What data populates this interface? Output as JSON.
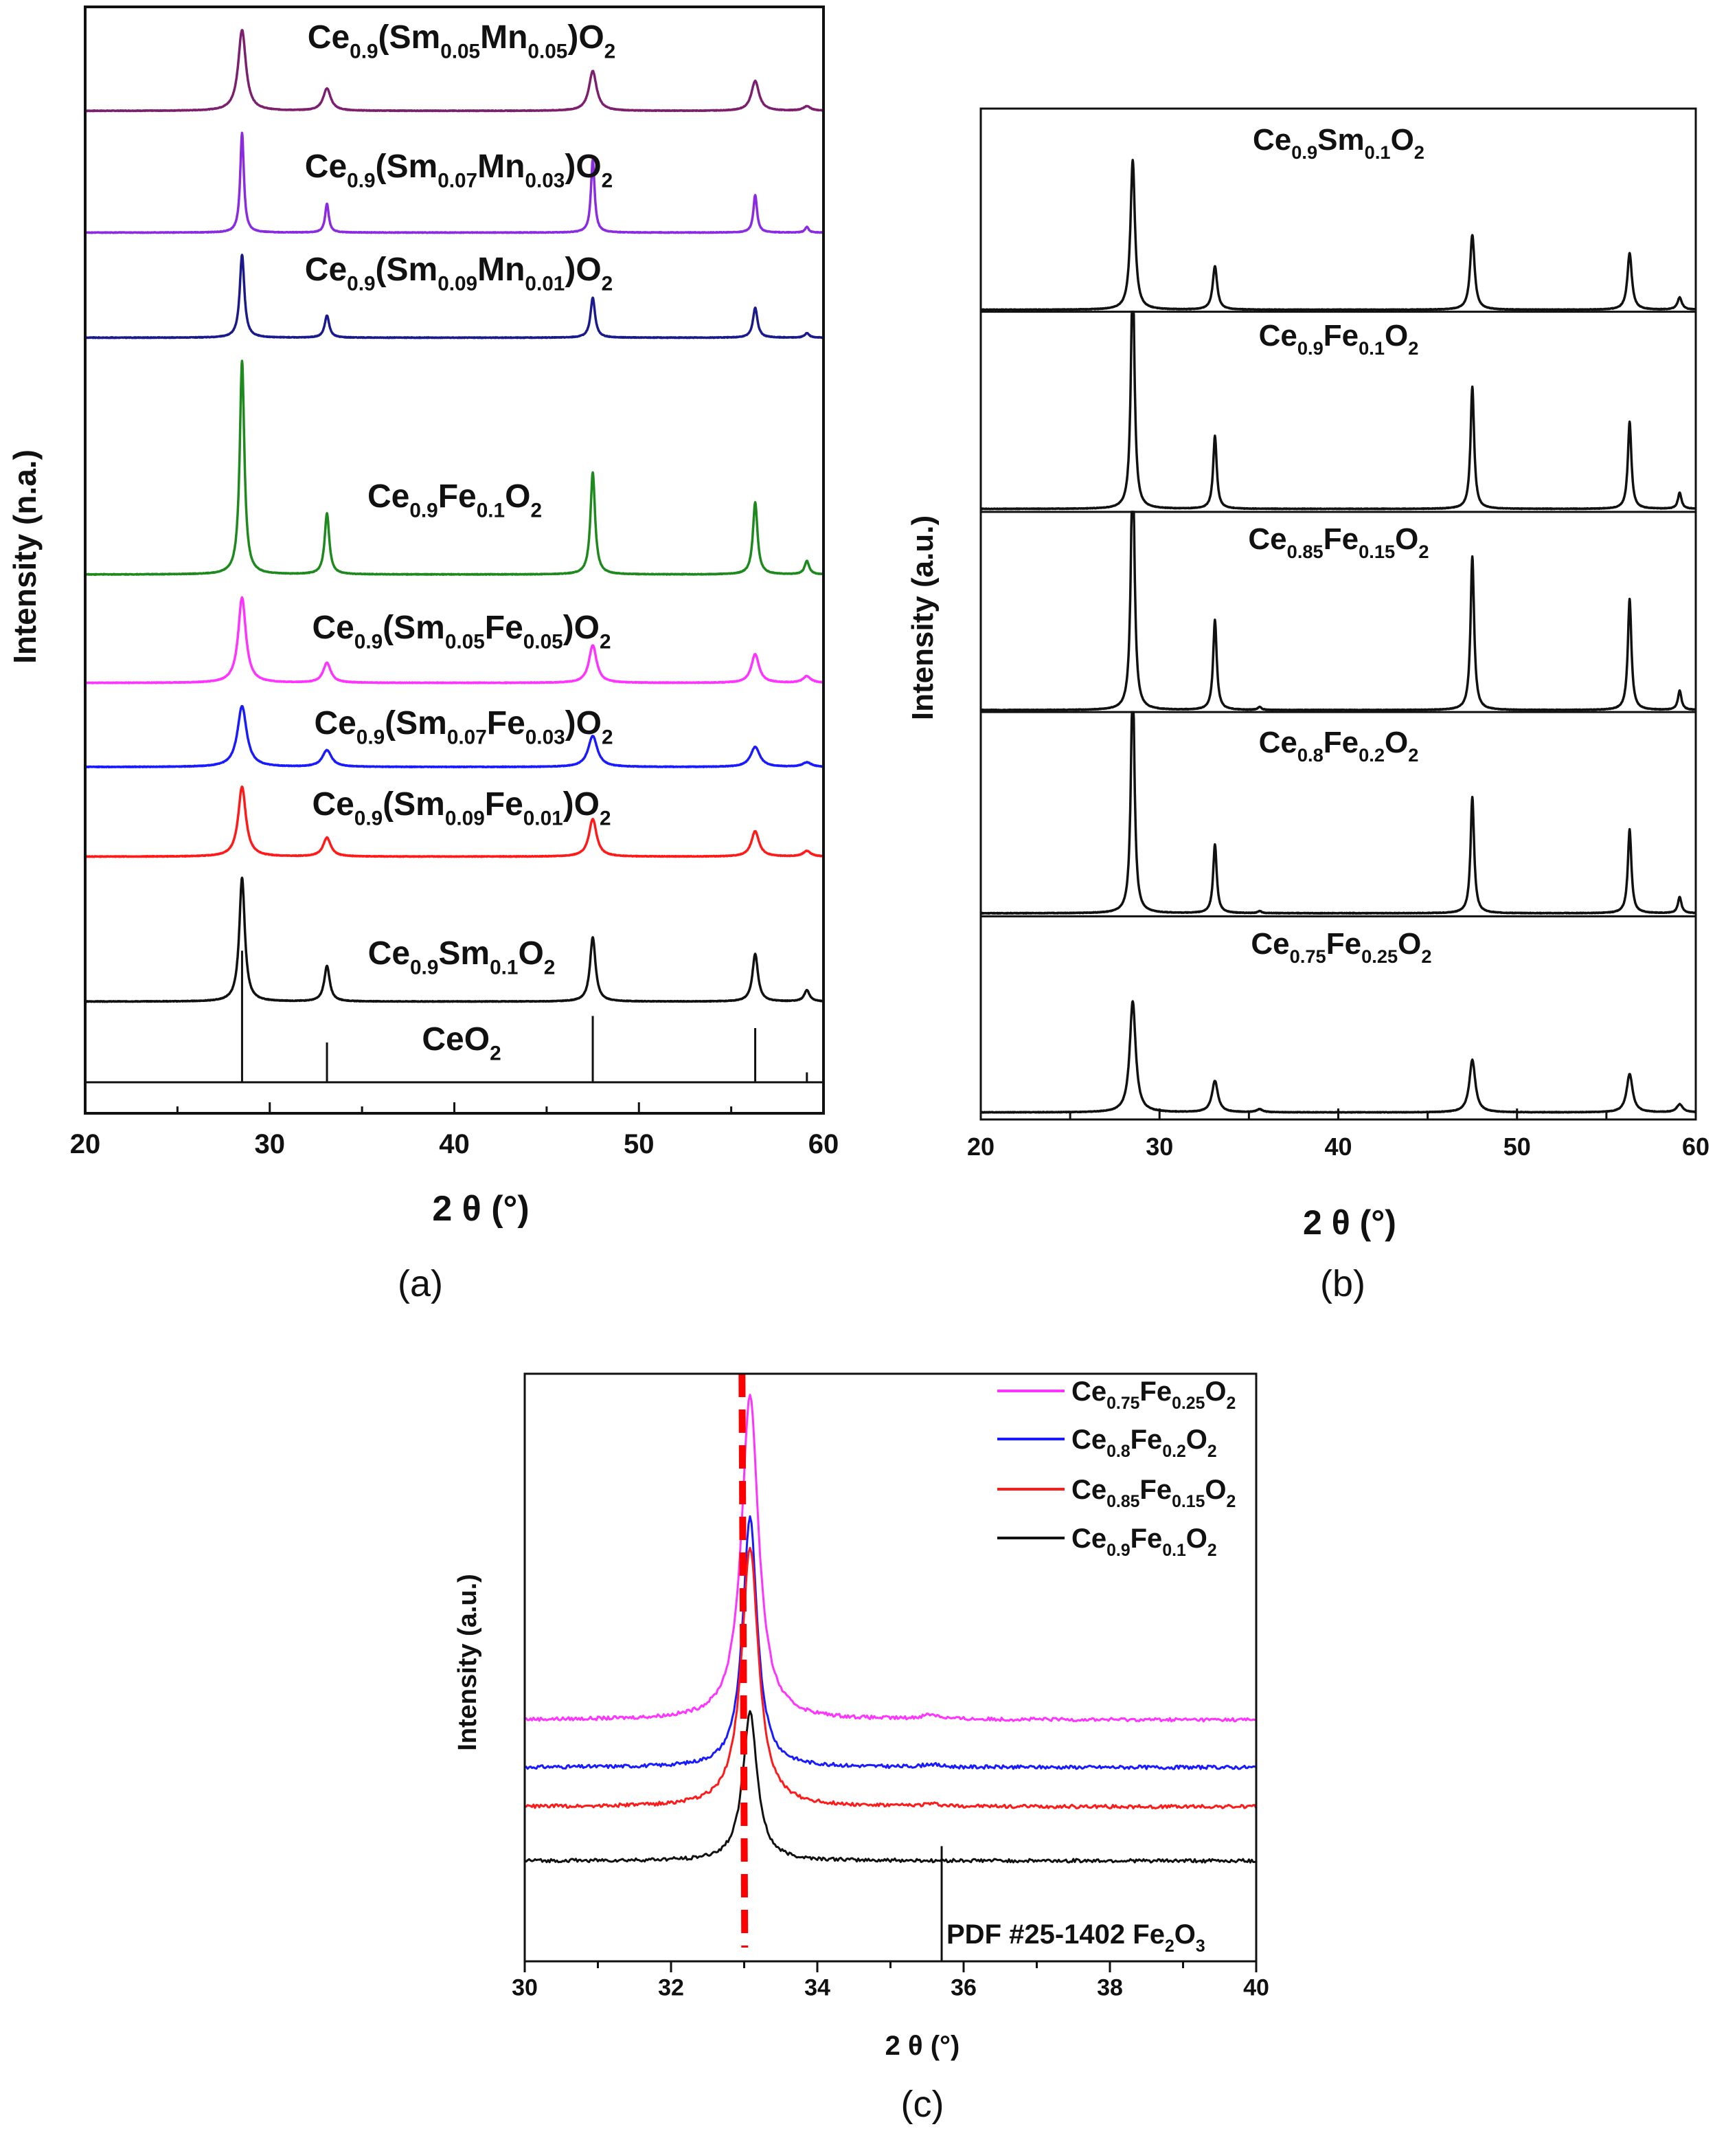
{
  "chart_data": [
    {
      "type": "line",
      "panel_label": "(a)",
      "xlabel": "2 θ (°)",
      "ylabel": "Intensity (n.a.)",
      "xlim": [
        20,
        60
      ],
      "ylim": [
        0,
        100
      ],
      "xticks": [
        "20",
        "30",
        "40",
        "50",
        "60"
      ],
      "peak_positions": [
        28.5,
        33.1,
        47.5,
        56.3,
        59.1
      ],
      "series": [
        {
          "name": "Ce0.9(Sm0.05Mn0.05)O2",
          "color": "#7b1f6e",
          "baseline": 90.6,
          "hwhm": 0.25,
          "peak_heights": [
            7.3,
            2.0,
            3.6,
            2.7,
            0.4
          ]
        },
        {
          "name": "Ce0.9(Sm0.07Mn0.03)O2",
          "color": "#8a2be2",
          "baseline": 79.6,
          "hwhm": 0.12,
          "peak_heights": [
            9.0,
            2.6,
            6.6,
            3.4,
            0.5
          ]
        },
        {
          "name": "Ce0.9(Sm0.09Mn0.01)O2",
          "color": "#1a1a8c",
          "baseline": 70.1,
          "hwhm": 0.15,
          "peak_heights": [
            7.5,
            2.0,
            3.6,
            2.7,
            0.4
          ]
        },
        {
          "name": "Ce0.9Fe0.1O2",
          "color": "#1e8a1e",
          "baseline": 48.7,
          "hwhm": 0.15,
          "peak_heights": [
            19.3,
            5.5,
            9.2,
            6.5,
            1.2
          ]
        },
        {
          "name": "Ce0.9(Sm0.05Fe0.05)O2",
          "color": "#ff33ff",
          "baseline": 38.9,
          "hwhm": 0.25,
          "peak_heights": [
            7.7,
            1.8,
            3.4,
            2.6,
            0.6
          ]
        },
        {
          "name": "Ce0.9(Sm0.07Fe0.03)O2",
          "color": "#1a1aff",
          "baseline": 31.3,
          "hwhm": 0.3,
          "peak_heights": [
            5.5,
            1.5,
            2.8,
            1.8,
            0.4
          ]
        },
        {
          "name": "Ce0.9(Sm0.09Fe0.01)O2",
          "color": "#ff1a1a",
          "baseline": 23.2,
          "hwhm": 0.25,
          "peak_heights": [
            6.3,
            1.7,
            3.4,
            2.3,
            0.5
          ]
        },
        {
          "name": "Ce0.9Sm0.1O2",
          "color": "#111111",
          "baseline": 10.1,
          "hwhm": 0.18,
          "peak_heights": [
            11.2,
            3.2,
            5.8,
            4.3,
            1.0
          ]
        }
      ],
      "reference": {
        "name": "CeO2",
        "baseline": 2.8,
        "stick_heights": [
          11.9,
          3.6,
          6.0,
          4.9,
          0.9
        ]
      }
    },
    {
      "type": "line",
      "panel_label": "(b)",
      "xlabel": "2 θ (°)",
      "ylabel": "Intensity (a.u.)",
      "xlim": [
        20,
        60
      ],
      "ylim": [
        0,
        100
      ],
      "xticks": [
        "20",
        "30",
        "40",
        "50",
        "60"
      ],
      "peak_positions": [
        28.5,
        33.1,
        35.6,
        47.5,
        56.3,
        59.1
      ],
      "divider_levels": [
        79.9,
        60.1,
        40.3,
        20.1
      ],
      "series": [
        {
          "name": "Ce0.9Sm0.1O2",
          "color": "#111111",
          "baseline": 80.1,
          "clip_top": 100,
          "hwhm": 0.15,
          "peak_heights": [
            14.8,
            4.3,
            0,
            7.4,
            5.6,
            1.2
          ]
        },
        {
          "name": "Ce0.9Fe0.1O2",
          "color": "#111111",
          "baseline": 60.4,
          "clip_top": 79.9,
          "hwhm": 0.12,
          "peak_heights": [
            24.0,
            7.2,
            0,
            12.1,
            8.6,
            1.6
          ]
        },
        {
          "name": "Ce0.85Fe0.15O2",
          "color": "#111111",
          "baseline": 40.5,
          "clip_top": 60.1,
          "hwhm": 0.12,
          "peak_heights": [
            26.0,
            8.9,
            0.3,
            15.2,
            11.0,
            1.9
          ]
        },
        {
          "name": "Ce0.8Fe0.2O2",
          "color": "#111111",
          "baseline": 20.4,
          "clip_top": 40.3,
          "hwhm": 0.12,
          "peak_heights": [
            24.0,
            6.8,
            0.2,
            11.5,
            8.3,
            1.6
          ]
        },
        {
          "name": "Ce0.75Fe0.25O2",
          "color": "#111111",
          "baseline": 0.7,
          "clip_top": 20.1,
          "hwhm": 0.2,
          "peak_heights": [
            11.0,
            3.1,
            0.3,
            5.2,
            3.8,
            0.8
          ]
        }
      ]
    },
    {
      "type": "line",
      "panel_label": "(c)",
      "xlabel": "2 θ (°)",
      "ylabel": "Intensity (a.u.)",
      "xlim": [
        30,
        40
      ],
      "ylim": [
        0,
        100
      ],
      "xticks": [
        "30",
        "32",
        "34",
        "36",
        "38",
        "40"
      ],
      "legend_position": "top-right",
      "peak_positions": [
        33.08,
        35.55
      ],
      "series": [
        {
          "name": "Ce0.75Fe0.25O2",
          "color": "#ff33ff",
          "baseline": 41.1,
          "hwhm": 0.14,
          "peak_heights": [
            55.4,
            0.8
          ]
        },
        {
          "name": "Ce0.8Fe0.2O2",
          "color": "#1a1aff",
          "baseline": 33.0,
          "hwhm": 0.12,
          "peak_heights": [
            42.5,
            0.5
          ]
        },
        {
          "name": "Ce0.85Fe0.15O2",
          "color": "#ff1a1a",
          "baseline": 26.3,
          "hwhm": 0.14,
          "peak_heights": [
            44.1,
            0.4
          ]
        },
        {
          "name": "Ce0.9Fe0.1O2",
          "color": "#111111",
          "baseline": 17.1,
          "hwhm": 0.12,
          "peak_heights": [
            25.2,
            0
          ]
        }
      ],
      "legend_order": [
        "Ce0.75Fe0.25O2",
        "Ce0.8Fe0.2O2",
        "Ce0.85Fe0.15O2",
        "Ce0.9Fe0.1O2"
      ],
      "dashed_marker": {
        "x": 32.97,
        "color": "#ff0000"
      },
      "reference": {
        "name": "PDF #25-1402 Fe2O3",
        "x": 35.7,
        "top": 19.6
      }
    }
  ]
}
